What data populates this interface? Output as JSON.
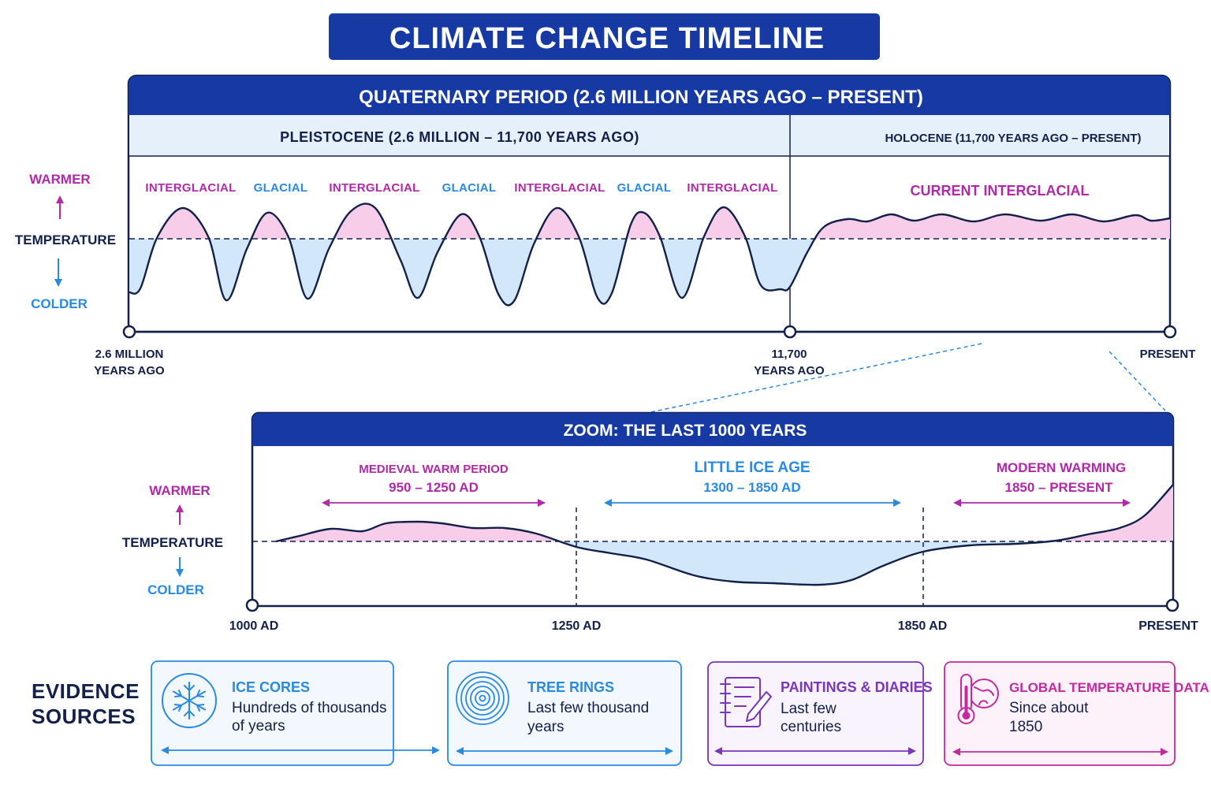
{
  "title": "CLIMATE CHANGE TIMELINE",
  "colors": {
    "navy": "#1639a3",
    "dark": "#12204a",
    "warm": "#b02aa8",
    "warm_fill": "#f7cdea",
    "cold": "#2a8ae0",
    "cold_fill": "#d2e8fa",
    "epoch_bg": "#e6f0fb"
  },
  "quaternary": {
    "heading": "QUATERNARY PERIOD (2.6 MILLION YEARS AGO – PRESENT)",
    "pleistocene": "PLEISTOCENE (2.6 MILLION – 11,700 YEARS AGO)",
    "holocene": "HOLOCENE (11,700 YEARS AGO – PRESENT)",
    "axis": {
      "warmer": "WARMER",
      "temperature": "TEMPERATURE",
      "colder": "COLDER"
    },
    "phases": [
      "INTERGLACIAL",
      "GLACIAL",
      "INTERGLACIAL",
      "GLACIAL",
      "INTERGLACIAL",
      "GLACIAL",
      "INTERGLACIAL"
    ],
    "current_phase": "CURRENT INTERGLACIAL",
    "ticks": [
      {
        "line1": "2.6 MILLION",
        "line2": "YEARS AGO"
      },
      {
        "line1": "11,700",
        "line2": "YEARS AGO"
      },
      {
        "line1": "PRESENT",
        "line2": ""
      }
    ]
  },
  "zoom": {
    "heading": "ZOOM: THE LAST 1000 YEARS",
    "axis": {
      "warmer": "WARMER",
      "temperature": "TEMPERATURE",
      "colder": "COLDER"
    },
    "periods": [
      {
        "name": "MEDIEVAL WARM PERIOD",
        "range": "950 – 1250 AD",
        "kind": "warm"
      },
      {
        "name": "LITTLE ICE AGE",
        "range": "1300 – 1850 AD",
        "kind": "cold"
      },
      {
        "name": "MODERN WARMING",
        "range": "1850 – PRESENT",
        "kind": "warm"
      }
    ],
    "ticks": [
      "1000 AD",
      "1250 AD",
      "1850 AD",
      "PRESENT"
    ]
  },
  "evidence": {
    "heading_line1": "EVIDENCE",
    "heading_line2": "SOURCES",
    "cards": [
      {
        "title": "ICE CORES",
        "body1": "Hundreds of thousands",
        "body2": "of years",
        "icon": "snowflake-icon",
        "color": "#2a8ae0"
      },
      {
        "title": "TREE RINGS",
        "body1": "Last few thousand",
        "body2": "years",
        "icon": "tree-rings-icon",
        "color": "#2a8ae0"
      },
      {
        "title": "PAINTINGS & DIARIES",
        "body1": "Last few",
        "body2": "centuries",
        "icon": "notebook-pencil-icon",
        "color": "#7a35b8"
      },
      {
        "title": "GLOBAL TEMPERATURE DATA",
        "body1": "Since about",
        "body2": "1850",
        "icon": "thermometer-globe-icon",
        "color": "#c42aa0"
      }
    ]
  }
}
